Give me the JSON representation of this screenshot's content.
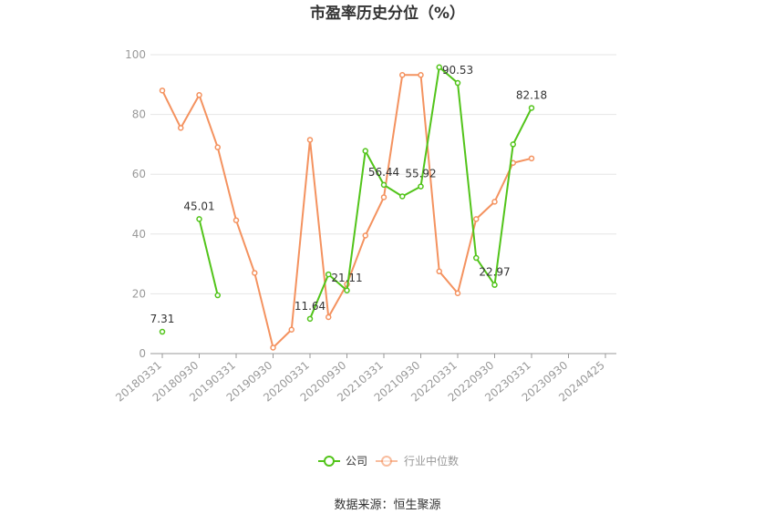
{
  "chart_data": {
    "type": "line",
    "title": "市盈率历史分位（%）",
    "source": "数据来源：恒生聚源",
    "ylim": [
      0,
      100
    ],
    "yticks": [
      0,
      20,
      40,
      60,
      80,
      100
    ],
    "grid": true,
    "legend_position": "bottom-center",
    "x": [
      "20180331",
      "20180630",
      "20180930",
      "20181231",
      "20190331",
      "20190630",
      "20190930",
      "20191231",
      "20200331",
      "20200630",
      "20200930",
      "20201231",
      "20210331",
      "20210630",
      "20210930",
      "20211231",
      "20220331",
      "20220630",
      "20220930",
      "20221231",
      "20230331",
      "20230630",
      "20230930",
      "20231231",
      "20240425"
    ],
    "xtick_labels": [
      "20180331",
      "20180930",
      "20190331",
      "20190930",
      "20200331",
      "20200930",
      "20210331",
      "20210930",
      "20220331",
      "20220930",
      "20230331",
      "20230930",
      "20240425"
    ],
    "series": [
      {
        "name": "公司",
        "color": "#52c41a",
        "values": [
          7.31,
          null,
          45.01,
          19.5,
          null,
          null,
          null,
          null,
          11.64,
          26.5,
          21.11,
          67.8,
          56.44,
          52.6,
          55.92,
          95.8,
          90.53,
          32.0,
          22.97,
          70.0,
          82.18,
          null,
          null,
          null,
          null
        ],
        "labels": [
          {
            "i": 0,
            "text": "7.31"
          },
          {
            "i": 2,
            "text": "45.01"
          },
          {
            "i": 8,
            "text": "11.64"
          },
          {
            "i": 10,
            "text": "21.11"
          },
          {
            "i": 12,
            "text": "56.44"
          },
          {
            "i": 14,
            "text": "55.92"
          },
          {
            "i": 16,
            "text": "90.53"
          },
          {
            "i": 18,
            "text": "22.97"
          },
          {
            "i": 20,
            "text": "82.18"
          }
        ]
      },
      {
        "name": "行业中位数",
        "color": "#f4925f",
        "values": [
          88.0,
          75.5,
          86.5,
          69.0,
          44.6,
          27.0,
          2.0,
          8.0,
          71.5,
          12.2,
          23.2,
          39.5,
          52.3,
          93.2,
          93.2,
          27.5,
          20.2,
          45.0,
          50.8,
          63.8,
          65.3,
          null,
          null,
          null,
          null
        ],
        "labels": []
      }
    ]
  }
}
